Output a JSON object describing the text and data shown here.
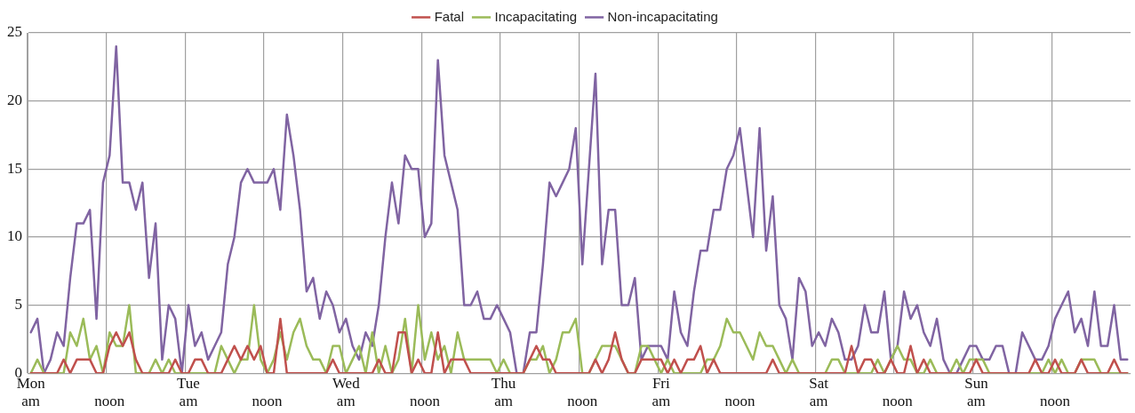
{
  "chart_data": {
    "type": "line",
    "categories": [
      "Mon\nam",
      null,
      null,
      null,
      null,
      null,
      null,
      null,
      null,
      null,
      null,
      null,
      "\nnoon",
      null,
      null,
      null,
      null,
      null,
      null,
      null,
      null,
      null,
      null,
      null,
      "Tue\nam",
      null,
      null,
      null,
      null,
      null,
      null,
      null,
      null,
      null,
      null,
      null,
      "\nnoon",
      null,
      null,
      null,
      null,
      null,
      null,
      null,
      null,
      null,
      null,
      null,
      "Wed\nam",
      null,
      null,
      null,
      null,
      null,
      null,
      null,
      null,
      null,
      null,
      null,
      "\nnoon",
      null,
      null,
      null,
      null,
      null,
      null,
      null,
      null,
      null,
      null,
      null,
      "Thu\nam",
      null,
      null,
      null,
      null,
      null,
      null,
      null,
      null,
      null,
      null,
      null,
      "\nnoon",
      null,
      null,
      null,
      null,
      null,
      null,
      null,
      null,
      null,
      null,
      null,
      "Fri\nam",
      null,
      null,
      null,
      null,
      null,
      null,
      null,
      null,
      null,
      null,
      null,
      "\nnoon",
      null,
      null,
      null,
      null,
      null,
      null,
      null,
      null,
      null,
      null,
      null,
      "Sat\nam",
      null,
      null,
      null,
      null,
      null,
      null,
      null,
      null,
      null,
      null,
      null,
      "\nnoon",
      null,
      null,
      null,
      null,
      null,
      null,
      null,
      null,
      null,
      null,
      null,
      "Sun\nam",
      null,
      null,
      null,
      null,
      null,
      null,
      null,
      null,
      null,
      null,
      null,
      "\nnoon",
      null,
      null,
      null,
      null,
      null,
      null,
      null,
      null,
      null,
      null,
      null
    ],
    "series": [
      {
        "name": "Fatal",
        "color": "#c0504d",
        "values": [
          0,
          0,
          0,
          0,
          0,
          1,
          0,
          1,
          1,
          1,
          0,
          0,
          2,
          3,
          2,
          3,
          1,
          0,
          0,
          0,
          0,
          0,
          1,
          0,
          0,
          1,
          1,
          0,
          0,
          0,
          1,
          2,
          1,
          2,
          1,
          2,
          0,
          0,
          4,
          0,
          0,
          0,
          0,
          0,
          0,
          0,
          1,
          0,
          0,
          0,
          0,
          0,
          0,
          1,
          0,
          0,
          3,
          3,
          0,
          1,
          0,
          0,
          3,
          0,
          1,
          1,
          1,
          0,
          0,
          0,
          0,
          0,
          0,
          0,
          0,
          0,
          1,
          2,
          1,
          1,
          0,
          0,
          0,
          0,
          0,
          0,
          1,
          0,
          1,
          3,
          1,
          0,
          0,
          1,
          1,
          1,
          1,
          0,
          1,
          0,
          1,
          1,
          2,
          0,
          1,
          0,
          0,
          0,
          0,
          0,
          0,
          0,
          0,
          1,
          0,
          0,
          0,
          0,
          0,
          0,
          0,
          0,
          0,
          0,
          0,
          2,
          0,
          1,
          1,
          0,
          0,
          1,
          0,
          0,
          2,
          0,
          1,
          0,
          0,
          0,
          0,
          0,
          0,
          0,
          1,
          0,
          0,
          0,
          0,
          0,
          0,
          0,
          0,
          1,
          0,
          0,
          1,
          0,
          0,
          0,
          1,
          0,
          0,
          0,
          0,
          1,
          0,
          0
        ]
      },
      {
        "name": "Incapacitating",
        "color": "#9bbb59",
        "values": [
          0,
          1,
          0,
          0,
          0,
          0,
          3,
          2,
          4,
          1,
          2,
          0,
          3,
          2,
          2,
          5,
          0,
          0,
          0,
          1,
          0,
          1,
          0,
          0,
          0,
          0,
          0,
          0,
          0,
          2,
          1,
          0,
          1,
          1,
          5,
          1,
          0,
          1,
          3,
          1,
          3,
          4,
          2,
          1,
          1,
          0,
          2,
          2,
          0,
          1,
          2,
          0,
          3,
          0,
          2,
          0,
          1,
          4,
          0,
          5,
          1,
          3,
          1,
          2,
          0,
          3,
          1,
          1,
          1,
          1,
          1,
          0,
          1,
          0,
          0,
          0,
          1,
          1,
          2,
          0,
          1,
          3,
          3,
          4,
          0,
          0,
          1,
          2,
          2,
          2,
          1,
          0,
          0,
          2,
          2,
          1,
          0,
          1,
          0,
          0,
          0,
          0,
          0,
          1,
          1,
          2,
          4,
          3,
          3,
          2,
          1,
          3,
          2,
          2,
          1,
          0,
          1,
          0,
          0,
          0,
          0,
          0,
          1,
          1,
          0,
          0,
          0,
          0,
          0,
          1,
          0,
          1,
          2,
          1,
          1,
          0,
          0,
          1,
          0,
          0,
          0,
          1,
          0,
          1,
          1,
          1,
          0,
          0,
          0,
          0,
          0,
          0,
          0,
          0,
          0,
          1,
          0,
          1,
          0,
          0,
          1,
          1,
          1,
          0,
          0,
          0,
          0,
          0
        ]
      },
      {
        "name": "Non-incapacitating",
        "color": "#8064a2",
        "values": [
          3,
          4,
          0,
          1,
          3,
          2,
          7,
          11,
          11,
          12,
          4,
          14,
          16,
          24,
          14,
          14,
          12,
          14,
          7,
          11,
          1,
          5,
          4,
          0,
          5,
          2,
          3,
          1,
          2,
          3,
          8,
          10,
          14,
          15,
          14,
          14,
          14,
          15,
          12,
          19,
          16,
          12,
          6,
          7,
          4,
          6,
          5,
          3,
          4,
          2,
          1,
          3,
          2,
          5,
          10,
          14,
          11,
          16,
          15,
          15,
          10,
          11,
          23,
          16,
          14,
          12,
          5,
          5,
          6,
          4,
          4,
          5,
          4,
          3,
          0,
          0,
          3,
          3,
          8,
          14,
          13,
          14,
          15,
          18,
          8,
          15,
          22,
          8,
          12,
          12,
          5,
          5,
          7,
          1,
          2,
          2,
          2,
          1,
          6,
          3,
          2,
          6,
          9,
          9,
          12,
          12,
          15,
          16,
          18,
          14,
          10,
          18,
          9,
          13,
          5,
          4,
          1,
          7,
          6,
          2,
          3,
          2,
          4,
          3,
          1,
          1,
          2,
          5,
          3,
          3,
          6,
          1,
          2,
          6,
          4,
          5,
          3,
          2,
          4,
          1,
          0,
          0,
          1,
          2,
          2,
          1,
          1,
          2,
          2,
          0,
          0,
          3,
          2,
          1,
          1,
          2,
          4,
          5,
          6,
          3,
          4,
          2,
          6,
          2,
          2,
          5,
          1,
          1
        ]
      }
    ],
    "ylim": [
      0,
      25
    ],
    "yticks": [
      0,
      5,
      10,
      15,
      20,
      25
    ],
    "grid": true,
    "legend": "top",
    "marker": "none",
    "line_style": "solid"
  }
}
